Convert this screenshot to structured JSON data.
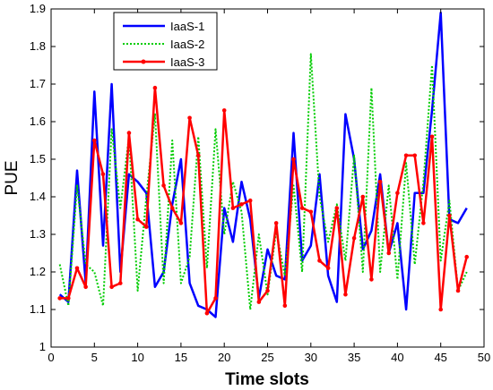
{
  "chart_data": {
    "type": "line",
    "title": "",
    "xlabel": "Time slots",
    "ylabel": "PUE",
    "xlim": [
      0,
      50
    ],
    "ylim": [
      1,
      1.9
    ],
    "xticks": [
      0,
      5,
      10,
      15,
      20,
      25,
      30,
      35,
      40,
      45,
      50
    ],
    "yticks": [
      1,
      1.1,
      1.2,
      1.3,
      1.4,
      1.5,
      1.6,
      1.7,
      1.8,
      1.9
    ],
    "xtick_labels": [
      "0",
      "5",
      "10",
      "15",
      "20",
      "25",
      "30",
      "35",
      "40",
      "45",
      "50"
    ],
    "ytick_labels": [
      "1",
      "1.1",
      "1.2",
      "1.3",
      "1.4",
      "1.5",
      "1.6",
      "1.7",
      "1.8",
      "1.9"
    ],
    "grid": false,
    "legend_position": "top-left",
    "x": [
      1,
      2,
      3,
      4,
      5,
      6,
      7,
      8,
      9,
      10,
      11,
      12,
      13,
      14,
      15,
      16,
      17,
      18,
      19,
      20,
      21,
      22,
      23,
      24,
      25,
      26,
      27,
      28,
      29,
      30,
      31,
      32,
      33,
      34,
      35,
      36,
      37,
      38,
      39,
      40,
      41,
      42,
      43,
      44,
      45,
      46,
      47,
      48
    ],
    "series": [
      {
        "name": "IaaS-1",
        "color": "#0000ff",
        "style": "solid",
        "marker": "none",
        "values": [
          1.14,
          1.12,
          1.47,
          1.17,
          1.68,
          1.27,
          1.7,
          1.2,
          1.46,
          1.44,
          1.41,
          1.16,
          1.2,
          1.38,
          1.5,
          1.17,
          1.11,
          1.1,
          1.08,
          1.37,
          1.28,
          1.44,
          1.34,
          1.13,
          1.26,
          1.19,
          1.18,
          1.57,
          1.23,
          1.27,
          1.46,
          1.19,
          1.12,
          1.62,
          1.5,
          1.26,
          1.31,
          1.46,
          1.25,
          1.33,
          1.1,
          1.41,
          1.41,
          1.63,
          1.89,
          1.34,
          1.33,
          1.37
        ]
      },
      {
        "name": "IaaS-2",
        "color": "#00cc00",
        "style": "dotted",
        "marker": "none",
        "values": [
          1.22,
          1.11,
          1.43,
          1.22,
          1.2,
          1.11,
          1.58,
          1.37,
          1.56,
          1.15,
          1.4,
          1.62,
          1.17,
          1.55,
          1.17,
          1.24,
          1.56,
          1.21,
          1.58,
          1.3,
          1.44,
          1.36,
          1.1,
          1.3,
          1.14,
          1.31,
          1.19,
          1.43,
          1.2,
          1.78,
          1.4,
          1.28,
          1.38,
          1.23,
          1.51,
          1.2,
          1.69,
          1.2,
          1.43,
          1.18,
          1.49,
          1.22,
          1.44,
          1.75,
          1.23,
          1.39,
          1.15,
          1.2
        ]
      },
      {
        "name": "IaaS-3",
        "color": "#ff0000",
        "style": "solid",
        "marker": "dot",
        "values": [
          1.13,
          1.13,
          1.21,
          1.16,
          1.55,
          1.46,
          1.16,
          1.17,
          1.57,
          1.34,
          1.32,
          1.69,
          1.43,
          1.37,
          1.33,
          1.61,
          1.51,
          1.09,
          1.13,
          1.63,
          1.37,
          1.38,
          1.39,
          1.12,
          1.15,
          1.33,
          1.11,
          1.5,
          1.37,
          1.36,
          1.23,
          1.21,
          1.37,
          1.14,
          1.29,
          1.4,
          1.18,
          1.44,
          1.25,
          1.41,
          1.51,
          1.51,
          1.33,
          1.56,
          1.1,
          1.35,
          1.15,
          1.24
        ]
      }
    ]
  }
}
